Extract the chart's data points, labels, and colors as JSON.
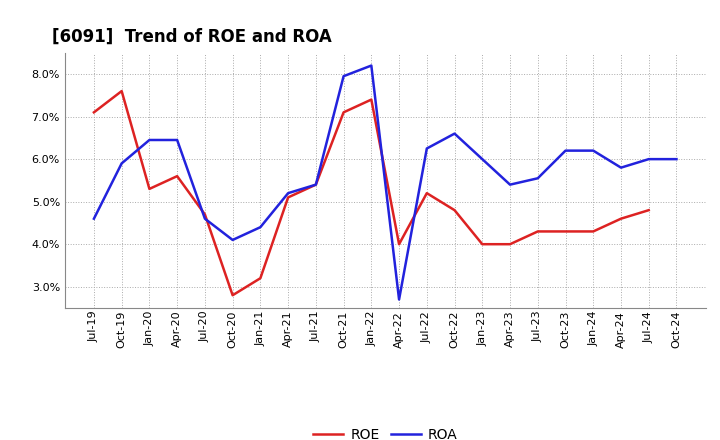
{
  "title": "[6091]  Trend of ROE and ROA",
  "x_labels": [
    "Jul-19",
    "Oct-19",
    "Jan-20",
    "Apr-20",
    "Jul-20",
    "Oct-20",
    "Jan-21",
    "Apr-21",
    "Jul-21",
    "Oct-21",
    "Jan-22",
    "Apr-22",
    "Jul-22",
    "Oct-22",
    "Jan-23",
    "Apr-23",
    "Jul-23",
    "Oct-23",
    "Jan-24",
    "Apr-24",
    "Jul-24",
    "Oct-24"
  ],
  "roe": [
    7.1,
    7.6,
    5.3,
    5.6,
    4.7,
    2.8,
    3.2,
    5.1,
    5.4,
    7.1,
    7.4,
    4.0,
    5.2,
    4.8,
    4.0,
    4.0,
    4.3,
    4.3,
    4.3,
    4.6,
    4.8,
    null
  ],
  "roa": [
    4.6,
    5.9,
    6.45,
    6.45,
    4.6,
    4.1,
    4.4,
    5.2,
    5.4,
    7.95,
    8.2,
    2.7,
    6.25,
    6.6,
    6.0,
    5.4,
    5.55,
    6.2,
    6.2,
    5.8,
    6.0,
    6.0
  ],
  "roe_color": "#dd2222",
  "roa_color": "#2222dd",
  "ylim": [
    2.5,
    8.5
  ],
  "yticks": [
    3.0,
    4.0,
    5.0,
    6.0,
    7.0,
    8.0
  ],
  "background_color": "#ffffff",
  "grid_color": "#aaaaaa",
  "title_fontsize": 12,
  "axis_fontsize": 8,
  "legend_fontsize": 10,
  "linewidth": 1.8
}
